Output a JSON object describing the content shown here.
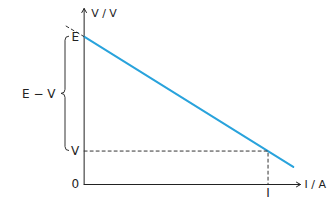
{
  "chart_data": {
    "type": "line",
    "xlabel": "I / A",
    "ylabel": "V / V",
    "xlim": [
      -1.2,
      12
    ],
    "ylim": [
      0,
      10
    ],
    "xticks": [
      {
        "value": 10.2,
        "label": "I"
      }
    ],
    "yticks": [
      0,
      {
        "value": 1.9,
        "label": "V"
      },
      {
        "value": 8.4,
        "label": "E"
      }
    ],
    "series": [
      {
        "x": [
          0,
          11.6
        ],
        "values": [
          8.4,
          1.0
        ],
        "color": "#29a3dc",
        "line_style": "solid"
      },
      {
        "x": [
          -1,
          0
        ],
        "values": [
          9.0,
          8.4
        ],
        "color": "#333333",
        "line_style": "dashed"
      },
      {
        "x": [
          0,
          10.2,
          10.2
        ],
        "values": [
          1.9,
          1.9,
          0
        ],
        "color": "#333333",
        "line_style": "dashed"
      }
    ],
    "annotations": [
      {
        "text": "E − V",
        "y": [
          1.9,
          8.4
        ]
      }
    ]
  }
}
